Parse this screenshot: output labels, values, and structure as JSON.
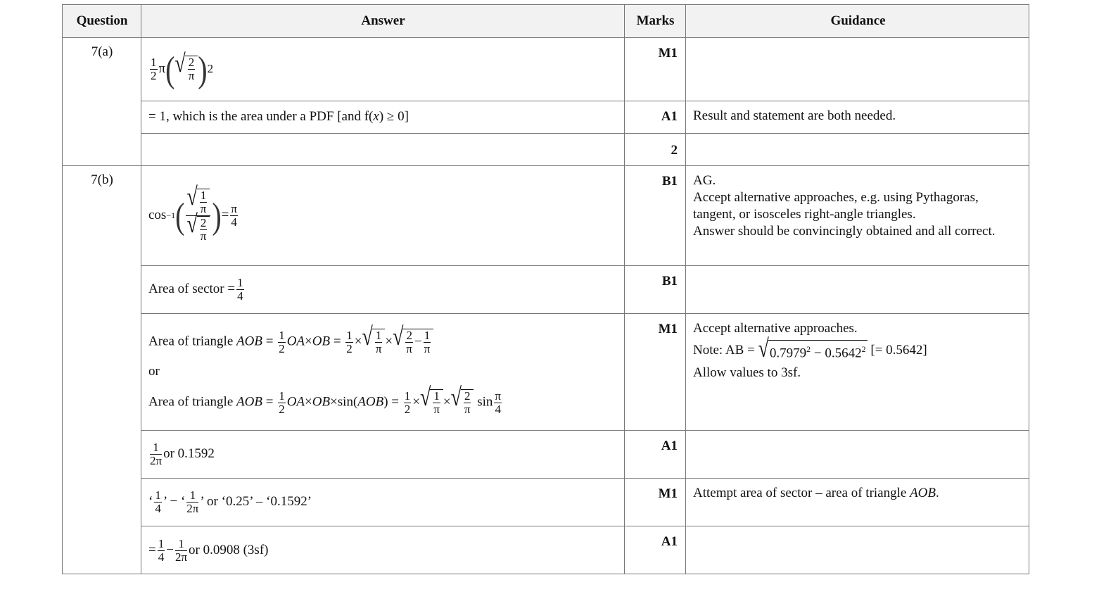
{
  "headers": {
    "question": "Question",
    "answer": "Answer",
    "marks": "Marks",
    "guidance": "Guidance"
  },
  "rows": [
    {
      "question": "7(a)",
      "answer": [
        {
          "f": [
            "1",
            "2"
          ]
        },
        "π",
        {
          "p": [
            {
              "r": [
                {
                  "f": [
                    "2",
                    "π"
                  ]
                }
              ]
            }
          ],
          "sup": "2"
        }
      ],
      "mark": "M1",
      "guidance": []
    },
    {
      "answer": [
        "= 1, which is the area under a PDF [and f(",
        {
          "i": "x"
        },
        ") ≥ 0]"
      ],
      "mark": "A1",
      "guidance": [
        [
          "Result and statement are both needed."
        ]
      ]
    },
    {
      "answer": [],
      "mark": "2",
      "guidance": []
    },
    {
      "question": "7(b)",
      "answer": [
        "cos",
        {
          "s": "−1"
        },
        {
          "p": [
            {
              "f": [
                [
                  {
                    "r": [
                      {
                        "f": [
                          "1",
                          "π"
                        ]
                      }
                    ]
                  }
                ],
                [
                  {
                    "r": [
                      {
                        "f": [
                          "2",
                          "π"
                        ]
                      }
                    ]
                  }
                ]
              ]
            }
          ]
        },
        " = ",
        {
          "f": [
            "π",
            "4"
          ]
        }
      ],
      "mark": "B1",
      "guidance": [
        [
          "AG."
        ],
        [
          "Accept alternative approaches, e.g. using Pythagoras,"
        ],
        [
          "tangent, or isosceles right-angle triangles."
        ],
        [
          "Answer should be convincingly obtained and all correct."
        ]
      ]
    },
    {
      "answer": [
        "Area of sector = ",
        {
          "f": [
            "1",
            "4"
          ]
        }
      ],
      "mark": "B1",
      "guidance": []
    },
    {
      "answer_lines": [
        [
          "Area of triangle ",
          {
            "i": "AOB"
          },
          " = ",
          {
            "f": [
              "1",
              "2"
            ]
          },
          {
            "i": "OA"
          },
          "×",
          {
            "i": "OB"
          },
          " = ",
          {
            "f": [
              "1",
              "2"
            ]
          },
          "×",
          {
            "r": [
              {
                "f": [
                  "1",
                  "π"
                ]
              }
            ]
          },
          "×",
          {
            "r": [
              {
                "f": [
                  "2",
                  "π"
                ]
              },
              "−",
              {
                "f": [
                  "1",
                  "π"
                ]
              }
            ]
          }
        ],
        [
          "or"
        ],
        [
          "Area of triangle ",
          {
            "i": "AOB"
          },
          " = ",
          {
            "f": [
              "1",
              "2"
            ]
          },
          {
            "i": "OA"
          },
          "×",
          {
            "i": "OB"
          },
          "×sin(",
          {
            "i": "AOB"
          },
          ") = ",
          {
            "f": [
              "1",
              "2"
            ]
          },
          "×",
          {
            "r": [
              {
                "f": [
                  "1",
                  "π"
                ]
              }
            ]
          },
          "×",
          {
            "r": [
              {
                "f": [
                  "2",
                  "π"
                ]
              }
            ]
          },
          " sin",
          {
            "f": [
              "π",
              "4"
            ]
          }
        ]
      ],
      "mark": "M1",
      "guidance": [
        [
          "Accept alternative approaches."
        ],
        [
          "Note: AB = ",
          {
            "r": [
              "0.7979",
              {
                "s": "2"
              },
              " − 0.5642",
              {
                "s": "2"
              }
            ]
          },
          "  [= 0.5642]"
        ],
        [
          "Allow values to 3sf."
        ]
      ]
    },
    {
      "answer": [
        {
          "f": [
            "1",
            "2π"
          ]
        },
        " or 0.1592"
      ],
      "mark": "A1",
      "guidance": []
    },
    {
      "answer": [
        "‘",
        {
          "f": [
            "1",
            "4"
          ]
        },
        "’ − ‘",
        {
          "f": [
            "1",
            "2π"
          ]
        },
        "’  or ‘0.25’ – ‘0.1592’"
      ],
      "mark": "M1",
      "guidance": [
        [
          "Attempt area of sector – area of triangle ",
          {
            "i": "AOB"
          },
          "."
        ]
      ]
    },
    {
      "answer": [
        "= ",
        {
          "f": [
            "1",
            "4"
          ]
        },
        " − ",
        {
          "f": [
            "1",
            "2π"
          ]
        },
        "  or 0.0908 (3sf)"
      ],
      "mark": "A1",
      "guidance": []
    }
  ]
}
